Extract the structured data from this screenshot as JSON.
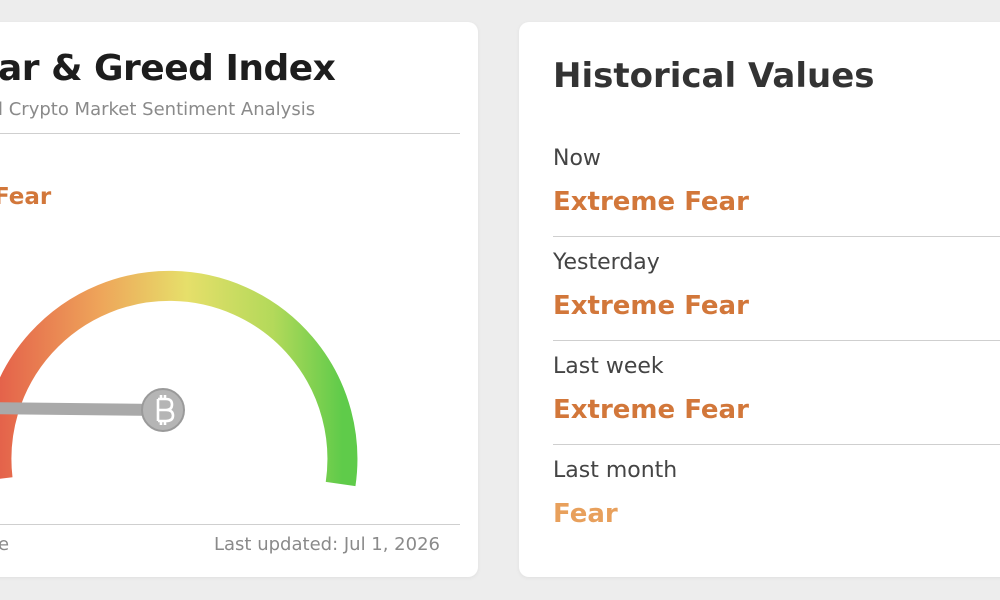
{
  "header": {
    "title": "ar & Greed Index",
    "subtitle": "l Crypto Market Sentiment Analysis"
  },
  "gauge": {
    "label": "Fear"
  },
  "footer": {
    "left": "e",
    "updated": "Last updated: Jul 1, 2026"
  },
  "history": {
    "title": "Historical Values",
    "rows": [
      {
        "label": "Now",
        "value": "Extreme Fear"
      },
      {
        "label": "Yesterday",
        "value": "Extreme Fear"
      },
      {
        "label": "Last week",
        "value": "Extreme Fear"
      },
      {
        "label": "Last month",
        "value": "Fear"
      }
    ]
  }
}
